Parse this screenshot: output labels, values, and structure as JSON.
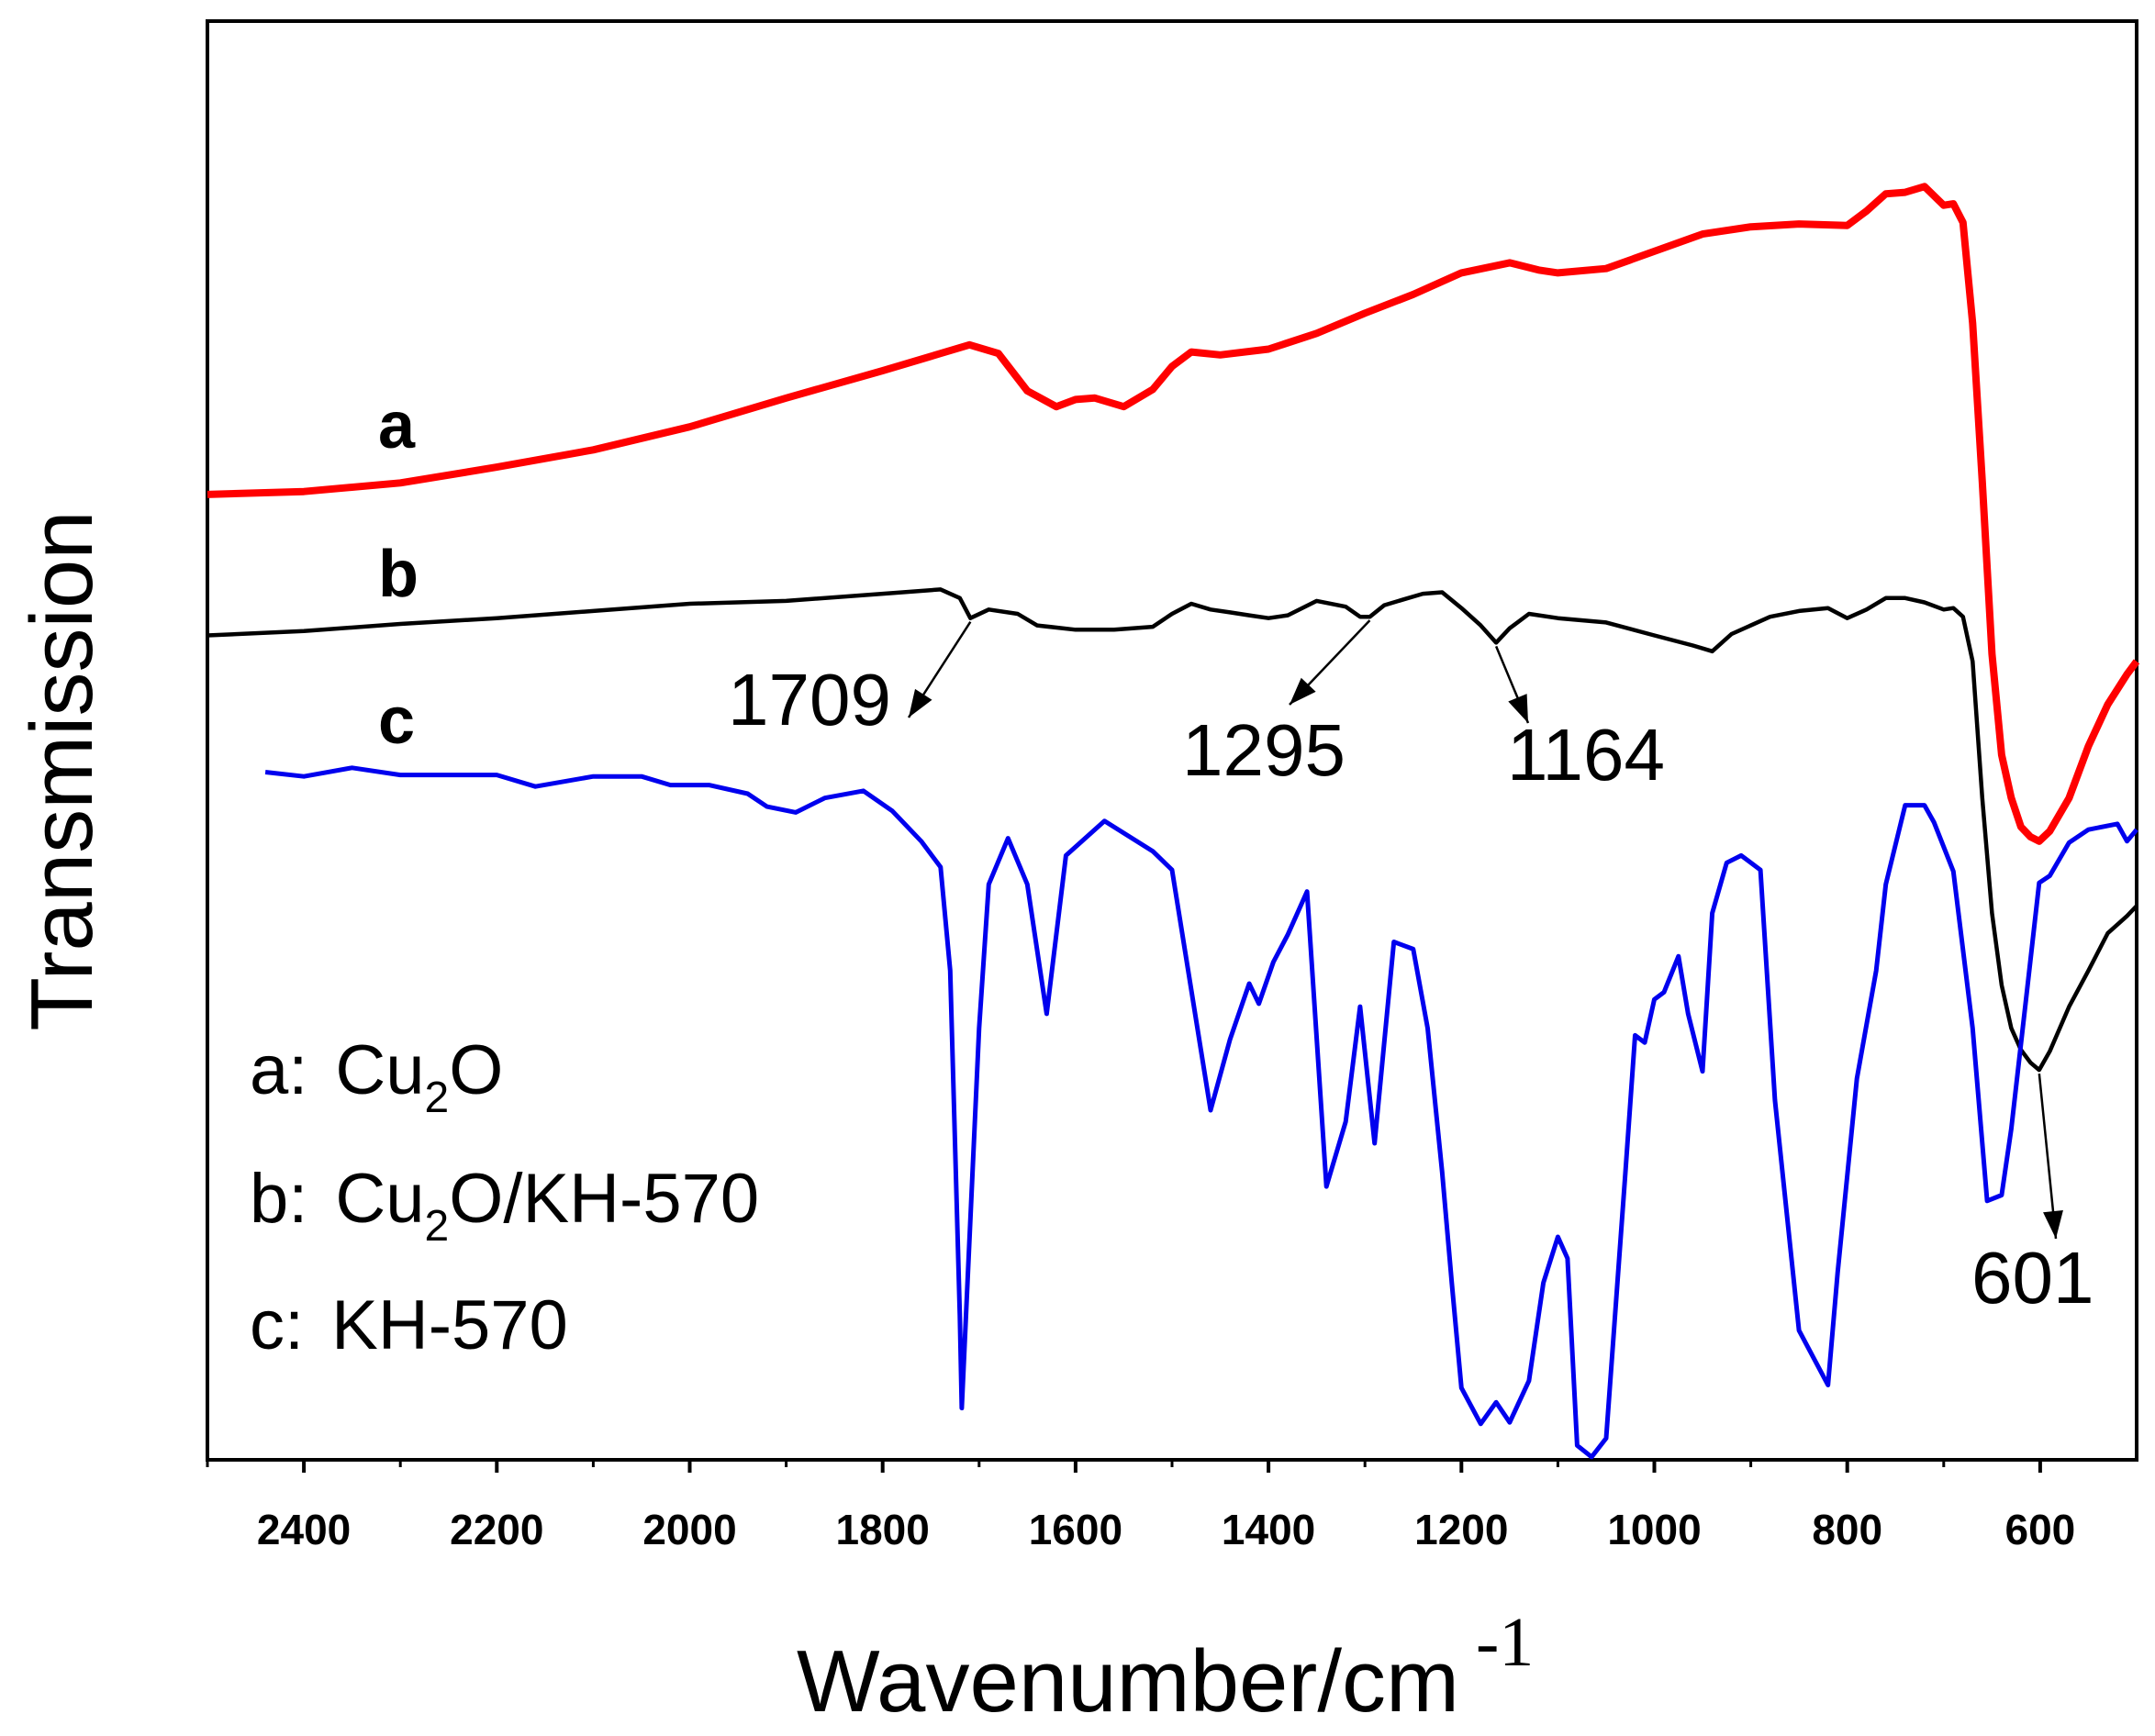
{
  "chart_data": {
    "type": "line",
    "title": "",
    "xlabel": "Wavenumber/cm",
    "xlabel_superscript": "-1",
    "ylabel": "Transmission",
    "xlim": [
      2500,
      500
    ],
    "ylim": [
      0,
      1
    ],
    "x_ticks": [
      2400,
      2200,
      2000,
      1800,
      1600,
      1400,
      1200,
      1000,
      800,
      600
    ],
    "x_tick_labels": [
      "2400",
      "2200",
      "2000",
      "1800",
      "1600",
      "1400",
      "1200",
      "1000",
      "800",
      "600"
    ],
    "grid": false,
    "series": [
      {
        "id": "a",
        "label": "a",
        "legend_prefix": "a:",
        "legend_parts": [
          "Cu",
          "2",
          "O"
        ],
        "color": "#ff0000",
        "x": [
          2500,
          2400,
          2300,
          2200,
          2100,
          2000,
          1900,
          1800,
          1740,
          1710,
          1680,
          1650,
          1620,
          1600,
          1580,
          1550,
          1520,
          1500,
          1480,
          1450,
          1400,
          1350,
          1300,
          1250,
          1200,
          1150,
          1120,
          1100,
          1050,
          1000,
          950,
          900,
          850,
          800,
          780,
          760,
          740,
          720,
          700,
          690,
          680,
          670,
          660,
          650,
          640,
          630,
          620,
          610,
          601,
          590,
          570,
          550,
          530,
          510,
          500
        ],
        "values": [
          0.671,
          0.673,
          0.679,
          0.69,
          0.702,
          0.718,
          0.738,
          0.757,
          0.769,
          0.775,
          0.769,
          0.743,
          0.732,
          0.737,
          0.738,
          0.732,
          0.744,
          0.76,
          0.77,
          0.768,
          0.772,
          0.783,
          0.797,
          0.81,
          0.825,
          0.832,
          0.827,
          0.825,
          0.828,
          0.84,
          0.852,
          0.857,
          0.859,
          0.858,
          0.868,
          0.88,
          0.881,
          0.885,
          0.872,
          0.873,
          0.86,
          0.79,
          0.68,
          0.56,
          0.49,
          0.46,
          0.44,
          0.433,
          0.43,
          0.437,
          0.46,
          0.496,
          0.525,
          0.546,
          0.555
        ]
      },
      {
        "id": "b",
        "label": "b",
        "legend_prefix": "b:",
        "legend_parts": [
          "Cu",
          "2",
          "O/KH-570"
        ],
        "color": "#000000",
        "x": [
          2500,
          2400,
          2300,
          2200,
          2100,
          2000,
          1900,
          1800,
          1740,
          1720,
          1709,
          1690,
          1660,
          1640,
          1600,
          1560,
          1520,
          1500,
          1480,
          1460,
          1440,
          1420,
          1400,
          1380,
          1350,
          1320,
          1305,
          1295,
          1280,
          1260,
          1240,
          1220,
          1200,
          1180,
          1164,
          1150,
          1130,
          1100,
          1050,
          1000,
          960,
          940,
          920,
          880,
          850,
          820,
          800,
          780,
          760,
          740,
          720,
          700,
          690,
          680,
          670,
          660,
          650,
          640,
          630,
          620,
          610,
          601,
          590,
          570,
          550,
          530,
          510,
          500
        ],
        "values": [
          0.573,
          0.576,
          0.581,
          0.585,
          0.59,
          0.595,
          0.597,
          0.602,
          0.605,
          0.599,
          0.585,
          0.591,
          0.588,
          0.58,
          0.577,
          0.577,
          0.579,
          0.588,
          0.595,
          0.591,
          0.589,
          0.587,
          0.585,
          0.587,
          0.597,
          0.593,
          0.586,
          0.586,
          0.594,
          0.598,
          0.602,
          0.603,
          0.592,
          0.58,
          0.568,
          0.578,
          0.588,
          0.585,
          0.582,
          0.573,
          0.566,
          0.562,
          0.574,
          0.586,
          0.59,
          0.592,
          0.585,
          0.591,
          0.599,
          0.599,
          0.596,
          0.591,
          0.592,
          0.586,
          0.555,
          0.46,
          0.38,
          0.33,
          0.3,
          0.285,
          0.276,
          0.271,
          0.284,
          0.315,
          0.34,
          0.366,
          0.378,
          0.385
        ]
      },
      {
        "id": "c",
        "label": "c",
        "legend_prefix": "c:",
        "legend_parts": [
          "KH-570"
        ],
        "color": "#0000ee",
        "x": [
          2440,
          2400,
          2350,
          2300,
          2250,
          2200,
          2160,
          2100,
          2050,
          2020,
          1980,
          1940,
          1920,
          1890,
          1860,
          1820,
          1790,
          1760,
          1740,
          1730,
          1720,
          1718,
          1700,
          1690,
          1670,
          1650,
          1630,
          1610,
          1570,
          1520,
          1500,
          1460,
          1440,
          1420,
          1410,
          1395,
          1380,
          1360,
          1340,
          1320,
          1305,
          1290,
          1270,
          1250,
          1235,
          1220,
          1210,
          1200,
          1180,
          1164,
          1150,
          1130,
          1115,
          1100,
          1090,
          1080,
          1065,
          1050,
          1030,
          1020,
          1010,
          1000,
          990,
          975,
          965,
          950,
          940,
          925,
          910,
          890,
          875,
          850,
          820,
          810,
          790,
          770,
          760,
          740,
          720,
          710,
          690,
          670,
          655,
          640,
          630,
          615,
          601,
          590,
          570,
          550,
          520,
          510,
          500
        ],
        "values": [
          0.478,
          0.475,
          0.481,
          0.476,
          0.476,
          0.476,
          0.468,
          0.475,
          0.475,
          0.469,
          0.469,
          0.463,
          0.454,
          0.45,
          0.46,
          0.465,
          0.451,
          0.43,
          0.412,
          0.34,
          0.1,
          0.036,
          0.3,
          0.4,
          0.432,
          0.4,
          0.31,
          0.42,
          0.444,
          0.423,
          0.41,
          0.243,
          0.292,
          0.331,
          0.317,
          0.346,
          0.365,
          0.395,
          0.19,
          0.235,
          0.315,
          0.22,
          0.36,
          0.355,
          0.3,
          0.2,
          0.123,
          0.05,
          0.025,
          0.04,
          0.026,
          0.055,
          0.123,
          0.155,
          0.14,
          0.01,
          0.002,
          0.015,
          0.2,
          0.295,
          0.29,
          0.32,
          0.325,
          0.35,
          0.31,
          0.27,
          0.38,
          0.415,
          0.42,
          0.41,
          0.25,
          0.09,
          0.052,
          0.13,
          0.265,
          0.34,
          0.4,
          0.455,
          0.455,
          0.443,
          0.409,
          0.3,
          0.18,
          0.184,
          0.23,
          0.318,
          0.401,
          0.406,
          0.429,
          0.438,
          0.442,
          0.43,
          0.438
        ]
      }
    ],
    "annotations": [
      {
        "text": "1709",
        "x": 1709,
        "series": "b"
      },
      {
        "text": "1295",
        "x": 1295,
        "series": "b"
      },
      {
        "text": "1164",
        "x": 1164,
        "series": "b"
      },
      {
        "text": "601",
        "x": 601,
        "series": "b"
      }
    ]
  }
}
